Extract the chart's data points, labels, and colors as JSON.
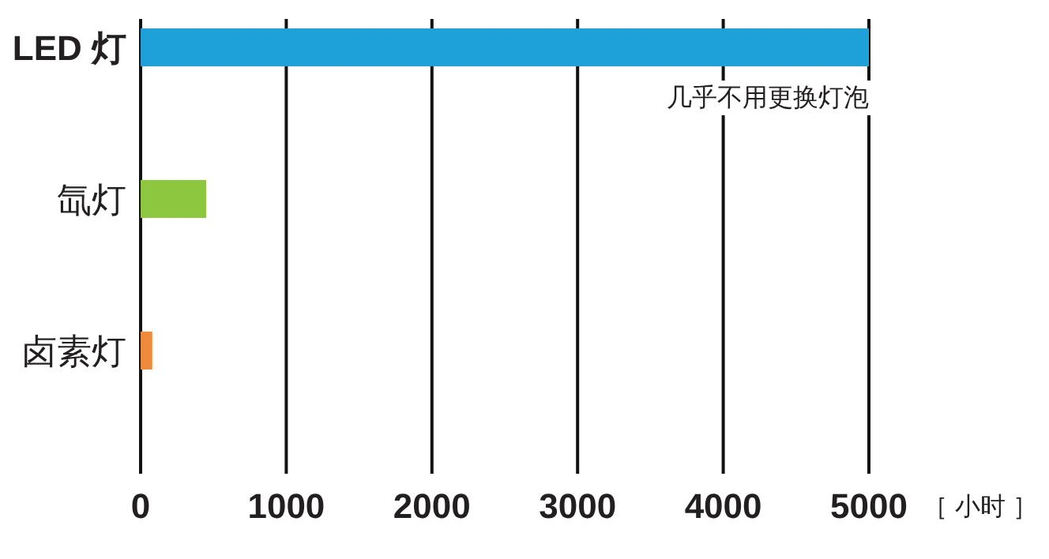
{
  "chart_data": {
    "type": "bar",
    "orientation": "horizontal",
    "categories": [
      "LED 灯",
      "氙灯",
      "卤素灯"
    ],
    "colors": [
      "#1ea0d8",
      "#8dc63f",
      "#ee8a3a"
    ],
    "values": [
      5000,
      450,
      80
    ],
    "xlim": [
      0,
      5000
    ],
    "xticks": [
      0,
      1000,
      2000,
      3000,
      4000,
      5000
    ],
    "xlabel": "［ 小时 ］",
    "grid": "x",
    "annotations": [
      {
        "text": "几乎不用更换灯泡",
        "x": 5000,
        "y": "LED 灯"
      }
    ]
  }
}
